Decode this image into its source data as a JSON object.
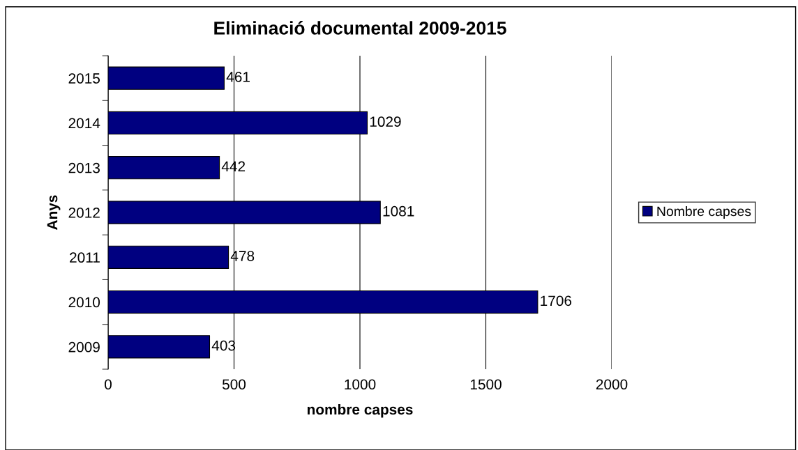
{
  "chart_data": {
    "type": "bar",
    "orientation": "horizontal",
    "title": "Eliminació documental 2009-2015",
    "xlabel": "nombre capses",
    "ylabel": "Anys",
    "categories": [
      "2015",
      "2014",
      "2013",
      "2012",
      "2011",
      "2010",
      "2009"
    ],
    "series": [
      {
        "name": "Nombre capses",
        "color": "#000080",
        "values": [
          461,
          1029,
          442,
          1081,
          478,
          1706,
          403
        ]
      }
    ],
    "xlim": [
      0,
      2000
    ],
    "xticks": [
      0,
      500,
      1000,
      1500,
      2000
    ],
    "grid": "x",
    "legend": "right",
    "data_labels": true
  }
}
